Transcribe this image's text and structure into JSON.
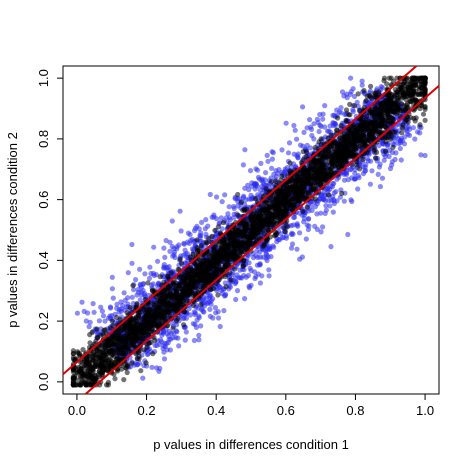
{
  "chart_data": {
    "type": "scatter",
    "title": "",
    "xlabel": "p values in differences condition 1",
    "ylabel": "p values in differences condition 2",
    "xlim": [
      -0.04,
      1.04
    ],
    "ylim": [
      -0.04,
      1.04
    ],
    "x_ticks": [
      "0.0",
      "0.2",
      "0.4",
      "0.6",
      "0.8",
      "1.0"
    ],
    "y_ticks": [
      "0.0",
      "0.2",
      "0.4",
      "0.6",
      "0.8",
      "1.0"
    ],
    "grid": false,
    "legend": "none",
    "series": [
      {
        "marker": "filled-circle",
        "color": "#2b2bf0",
        "description_note": "",
        "x_range": [
          0.1,
          0.92
        ],
        "deviation_from_diagonal": 0.15
      },
      {
        "marker": "filled-circle",
        "color": "#000000",
        "x_range": [
          0.0,
          1.0
        ],
        "deviation_from_diagonal": 0.08
      }
    ],
    "reference_lines": [
      {
        "color": "#e00000",
        "slope": 1.0,
        "intercept": 0.065
      },
      {
        "color": "#e00000",
        "slope": 1.0,
        "intercept": -0.065
      }
    ]
  }
}
